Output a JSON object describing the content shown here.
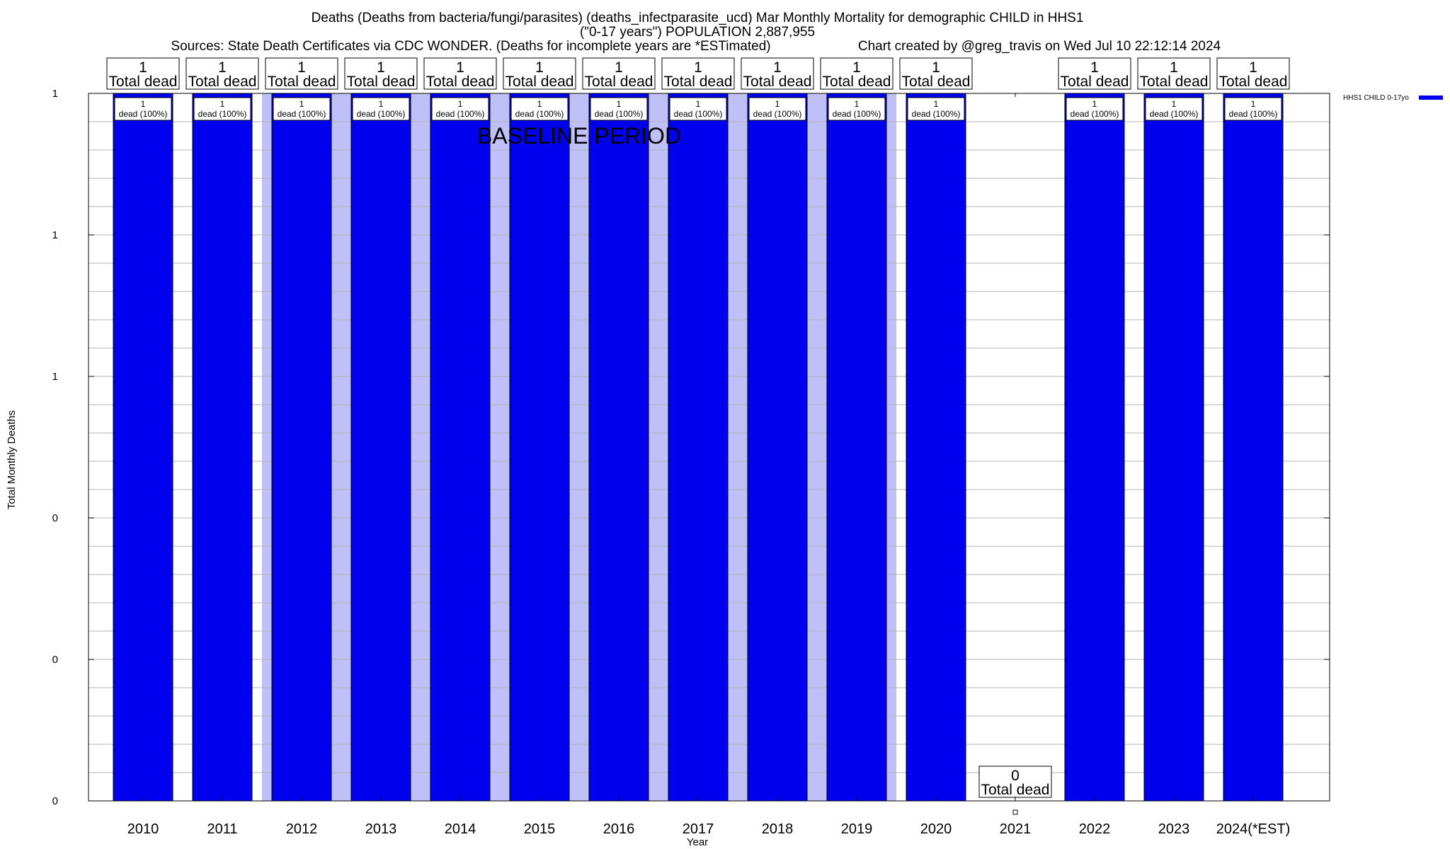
{
  "chart_data": {
    "type": "bar",
    "title_lines": [
      "Deaths (Deaths from bacteria/fungi/parasites) (deaths_infectparasite_ucd) Mar Monthly Mortality for demographic CHILD in HHS1",
      "(\"0-17 years\") POPULATION 2,887,955",
      "Sources: State Death Certificates via CDC WONDER. (Deaths for incomplete years are *ESTimated)"
    ],
    "credit": "Chart created by @greg_travis on Wed Jul 10 22:12:14 2024",
    "xlabel": "Year",
    "ylabel": "Total Monthly Deaths",
    "ytick_labels": [
      "0",
      "0",
      "0",
      "1",
      "1",
      "1"
    ],
    "ylim": [
      0,
      1
    ],
    "categories": [
      "2010",
      "2011",
      "2012",
      "2013",
      "2014",
      "2015",
      "2016",
      "2017",
      "2018",
      "2019",
      "2020",
      "2021",
      "2022",
      "2023",
      "2024(*EST)"
    ],
    "series": [
      {
        "name": "HHS1 CHILD 0-17yo",
        "color": "#0000ee",
        "values": [
          1,
          1,
          1,
          1,
          1,
          1,
          1,
          1,
          1,
          1,
          1,
          0,
          1,
          1,
          1
        ]
      }
    ],
    "total_labels": [
      "1",
      "1",
      "1",
      "1",
      "1",
      "1",
      "1",
      "1",
      "1",
      "1",
      "1",
      "0",
      "1",
      "1",
      "1"
    ],
    "total_suffix": "Total dead",
    "inner_label_top": [
      "1",
      "1",
      "1",
      "1",
      "1",
      "1",
      "1",
      "1",
      "1",
      "1",
      "1",
      "",
      "1",
      "1",
      "1"
    ],
    "inner_label_bottom": [
      "dead (100%)",
      "dead (100%)",
      "dead (100%)",
      "dead (100%)",
      "dead (100%)",
      "dead (100%)",
      "dead (100%)",
      "dead (100%)",
      "dead (100%)",
      "dead (100%)",
      "dead (100%)",
      "",
      "dead (100%)",
      "dead (100%)",
      "dead (100%)"
    ],
    "baseline": {
      "label": "BASELINE PERIOD",
      "start_year": "2012",
      "end_year": "2019",
      "color": "#c0c0f8"
    },
    "legend_position": "top-right",
    "grid": true
  }
}
